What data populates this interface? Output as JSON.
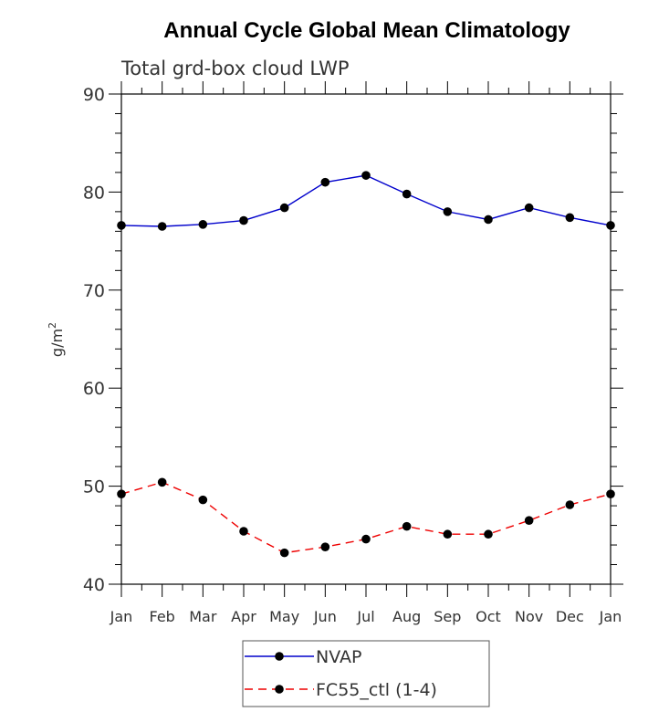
{
  "chart_data": {
    "type": "line",
    "title": "Annual Cycle Global Mean Climatology",
    "subtitle": "Total grd-box cloud LWP",
    "ylabel": "g/m",
    "ylabel_superscript": "2",
    "xlabel": "",
    "ylim": [
      40,
      90
    ],
    "yticks": [
      "40",
      "50",
      "60",
      "70",
      "80",
      "90"
    ],
    "categories": [
      "Jan",
      "Feb",
      "Mar",
      "Apr",
      "May",
      "Jun",
      "Jul",
      "Aug",
      "Sep",
      "Oct",
      "Nov",
      "Dec",
      "Jan"
    ],
    "grid": false,
    "legend_position": "bottom-center",
    "series": [
      {
        "name": "NVAP",
        "color": "#0000cc",
        "dash": "solid",
        "values": [
          76.6,
          76.5,
          76.7,
          77.1,
          78.4,
          81.0,
          81.7,
          79.8,
          78.0,
          77.2,
          78.4,
          77.4,
          76.6
        ]
      },
      {
        "name": "FC55_ctl (1-4)",
        "color": "#ee0000",
        "dash": "dashed",
        "values": [
          49.2,
          50.4,
          48.6,
          45.4,
          43.2,
          43.8,
          44.6,
          45.9,
          45.1,
          45.1,
          46.5,
          48.1,
          49.2
        ]
      }
    ]
  }
}
